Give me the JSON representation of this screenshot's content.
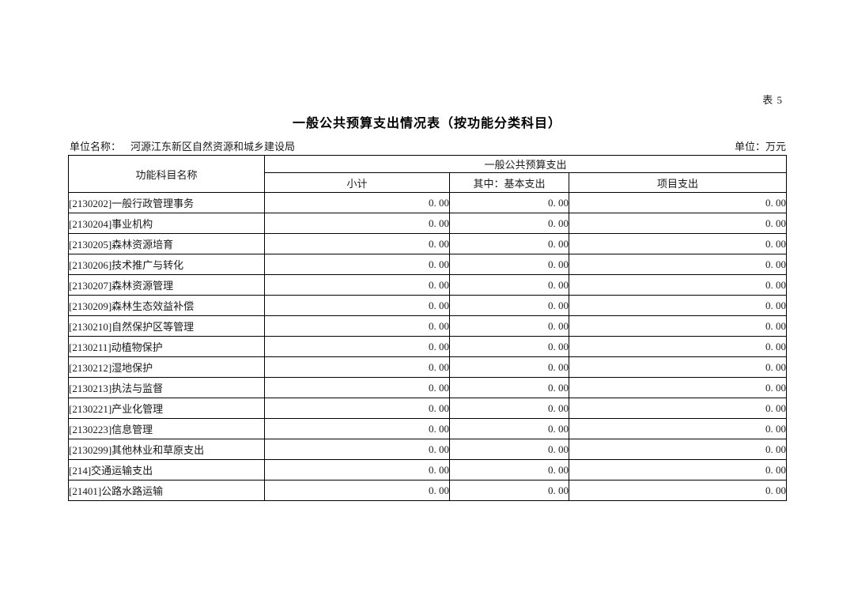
{
  "page": {
    "table_label": "表 5",
    "title": "一般公共预算支出情况表（按功能分类科目）",
    "unit_name_label": "单位名称：",
    "unit_name_value": "河源江东新区自然资源和城乡建设局",
    "unit_label": "单位：万元"
  },
  "table": {
    "headers": {
      "function_subject": "功能科目名称",
      "group": "一般公共预算支出",
      "subtotal": "小计",
      "basic": "其中：基本支出",
      "project": "项目支出"
    },
    "rows": [
      {
        "name": "[2130202]一般行政管理事务",
        "subtotal": "0. 00",
        "basic": "0. 00",
        "project": "0. 00"
      },
      {
        "name": "[2130204]事业机构",
        "subtotal": "0. 00",
        "basic": "0. 00",
        "project": "0. 00"
      },
      {
        "name": "[2130205]森林资源培育",
        "subtotal": "0. 00",
        "basic": "0. 00",
        "project": "0. 00"
      },
      {
        "name": "[2130206]技术推广与转化",
        "subtotal": "0. 00",
        "basic": "0. 00",
        "project": "0. 00"
      },
      {
        "name": "[2130207]森林资源管理",
        "subtotal": "0. 00",
        "basic": "0. 00",
        "project": "0. 00"
      },
      {
        "name": "[2130209]森林生态效益补偿",
        "subtotal": "0. 00",
        "basic": "0. 00",
        "project": "0. 00"
      },
      {
        "name": "[2130210]自然保护区等管理",
        "subtotal": "0. 00",
        "basic": "0. 00",
        "project": "0. 00"
      },
      {
        "name": "[2130211]动植物保护",
        "subtotal": "0. 00",
        "basic": "0. 00",
        "project": "0. 00"
      },
      {
        "name": "[2130212]湿地保护",
        "subtotal": "0. 00",
        "basic": "0. 00",
        "project": "0. 00"
      },
      {
        "name": "[2130213]执法与监督",
        "subtotal": "0. 00",
        "basic": "0. 00",
        "project": "0. 00"
      },
      {
        "name": "[2130221]产业化管理",
        "subtotal": "0. 00",
        "basic": "0. 00",
        "project": "0. 00"
      },
      {
        "name": "[2130223]信息管理",
        "subtotal": "0. 00",
        "basic": "0. 00",
        "project": "0. 00"
      },
      {
        "name": "[2130299]其他林业和草原支出",
        "subtotal": "0. 00",
        "basic": "0. 00",
        "project": "0. 00"
      },
      {
        "name": "[214]交通运输支出",
        "subtotal": "0. 00",
        "basic": "0. 00",
        "project": "0. 00"
      },
      {
        "name": "[21401]公路水路运输",
        "subtotal": "0. 00",
        "basic": "0. 00",
        "project": "0. 00"
      }
    ]
  }
}
